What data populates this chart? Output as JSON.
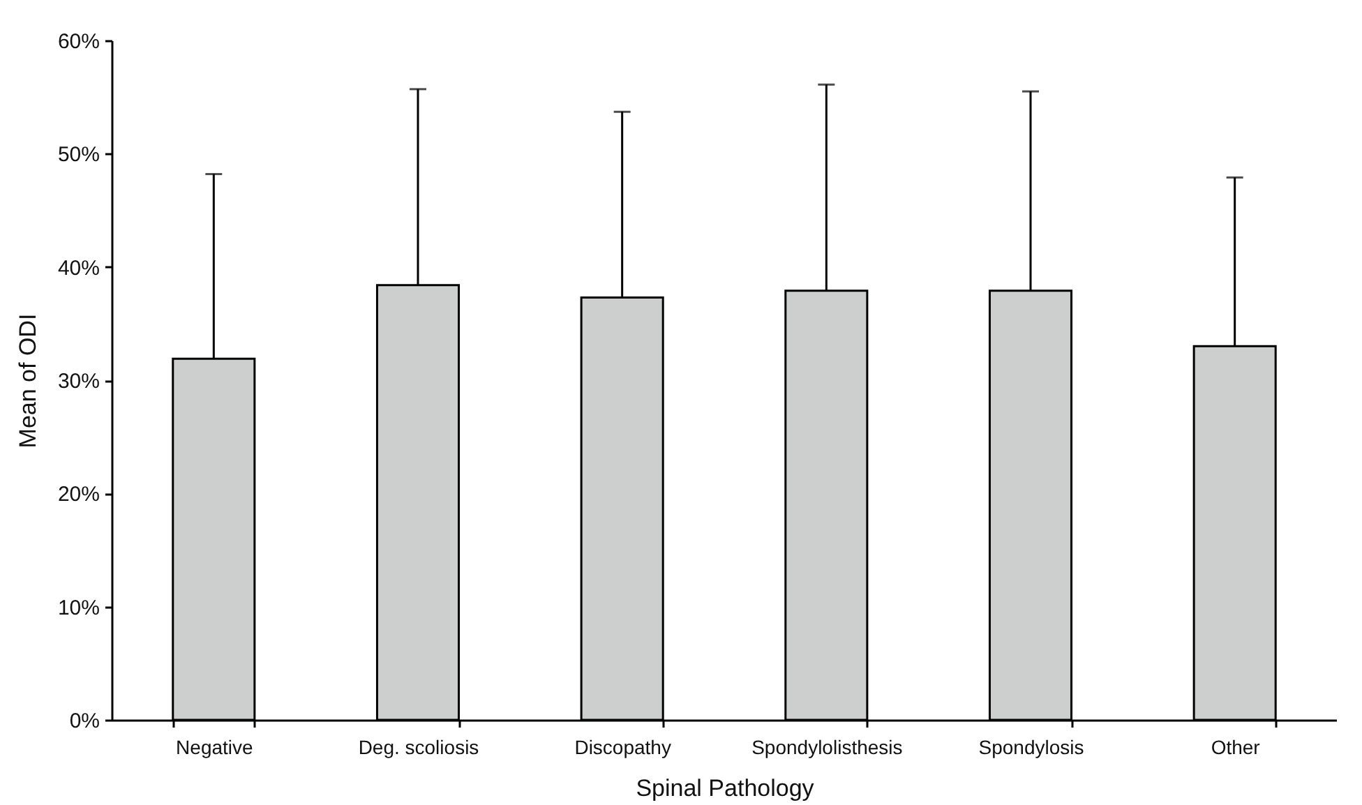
{
  "chart_data": {
    "type": "bar",
    "xlabel": "Spinal Pathology",
    "ylabel": "Mean of ODI",
    "categories": [
      "Negative",
      "Deg. scoliosis",
      "Discopathy",
      "Spondylolisthesis",
      "Spondylosis",
      "Other"
    ],
    "values": [
      31.9,
      38.4,
      37.3,
      37.9,
      37.9,
      33.0
    ],
    "errors": [
      [
        31.9,
        48.2
      ],
      [
        38.4,
        55.7
      ],
      [
        37.3,
        53.7
      ],
      [
        37.9,
        56.1
      ],
      [
        37.9,
        55.5
      ],
      [
        33.0,
        47.9
      ]
    ],
    "color": "#cdcfce",
    "ylim": [
      0,
      60
    ],
    "yticks": [
      {
        "value": 0,
        "label": "0%"
      },
      {
        "value": 10,
        "label": "10%"
      },
      {
        "value": 20,
        "label": "20%"
      },
      {
        "value": 30,
        "label": "30%"
      },
      {
        "value": 40,
        "label": "40%"
      },
      {
        "value": 50,
        "label": "50%"
      },
      {
        "value": 60,
        "label": "60%"
      }
    ],
    "grid": false
  }
}
